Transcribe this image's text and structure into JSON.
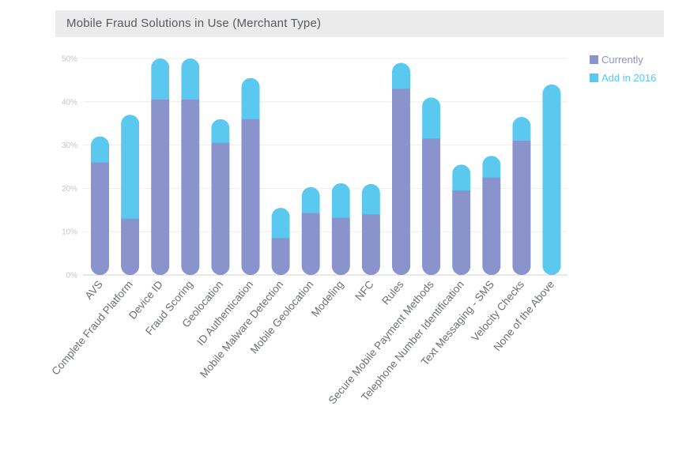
{
  "chart_data": {
    "type": "bar",
    "stacked": true,
    "title": "Mobile Fraud Solutions in Use (Merchant Type)",
    "xlabel": "",
    "ylabel": "",
    "ylim": [
      0,
      50
    ],
    "yticks": [
      "0%",
      "10%",
      "20%",
      "30%",
      "40%",
      "50%"
    ],
    "grid": true,
    "legend_position": "right",
    "categories": [
      "AVS",
      "Complete Fraud Platform",
      "Device ID",
      "Fraud Scoring",
      "Geolocation",
      "ID Authentication",
      "Mobile Malware Detection",
      "Mobile Geolocation",
      "Modeling",
      "NFC",
      "Rules",
      "Secure Mobile Payment Methods",
      "Telephone Number Identification",
      "Text Messaging - SMS",
      "Velocity Checks",
      "None of the Above"
    ],
    "series": [
      {
        "name": "Currently",
        "color": "#8a93cc",
        "values": [
          26,
          13,
          40.5,
          40.5,
          30.5,
          36,
          8.5,
          14.3,
          13.2,
          14,
          43,
          31.5,
          19.5,
          22.5,
          31,
          0
        ]
      },
      {
        "name": "Add in 2016",
        "color": "#5bc8ef",
        "values": [
          6,
          24,
          9.5,
          9.5,
          5.5,
          9.5,
          7,
          6,
          8,
          7,
          6,
          9.5,
          6,
          5,
          5.5,
          44
        ]
      }
    ]
  }
}
